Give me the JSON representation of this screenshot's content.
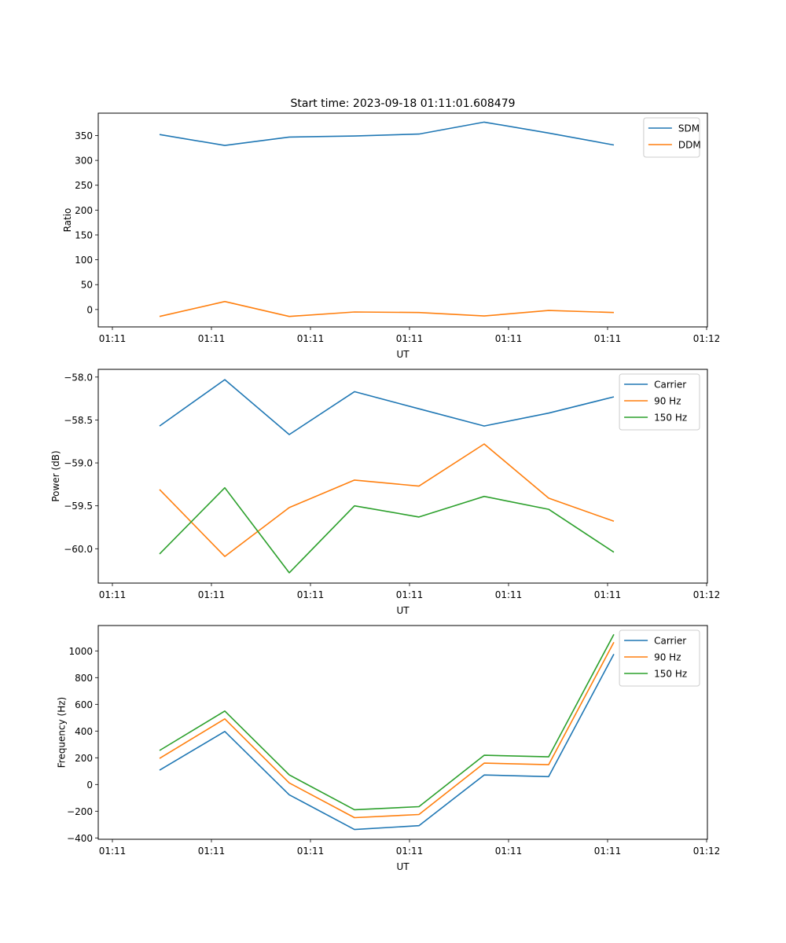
{
  "chart_data": [
    {
      "type": "line",
      "title": "Start time: 2023-09-18 01:11:01.608479",
      "xlabel": "UT",
      "ylabel": "Ratio",
      "xtick_labels": [
        "01:11",
        "01:11",
        "01:11",
        "01:11",
        "01:11",
        "01:11",
        "01:12"
      ],
      "ytick_labels": [
        "0",
        "50",
        "100",
        "150",
        "200",
        "250",
        "300",
        "350"
      ],
      "yticks": [
        0,
        50,
        100,
        150,
        200,
        250,
        300,
        350
      ],
      "ylim": [
        -35,
        395
      ],
      "x": [
        1,
        2,
        3,
        4,
        5,
        6,
        7,
        8
      ],
      "xlim": [
        -1.2,
        8.2
      ],
      "xticks": [
        -1,
        0.53,
        2.06,
        3.59,
        5.12,
        6.65,
        8.18
      ],
      "legend": "top-right",
      "grid": false,
      "series": [
        {
          "name": "SDM",
          "color": "#1f77b4",
          "values": [
            352,
            330,
            347,
            349,
            353,
            377,
            355,
            331
          ]
        },
        {
          "name": "DDM",
          "color": "#ff7f0e",
          "values": [
            -14,
            16,
            -14,
            -5,
            -6,
            -13,
            -2,
            -6
          ]
        }
      ]
    },
    {
      "type": "line",
      "title": "",
      "xlabel": "UT",
      "ylabel": "Power (dB)",
      "xtick_labels": [
        "01:11",
        "01:11",
        "01:11",
        "01:11",
        "01:11",
        "01:11",
        "01:12"
      ],
      "ytick_labels": [
        "−60.0",
        "−59.5",
        "−59.0",
        "−58.5",
        "−58.0"
      ],
      "yticks": [
        -60.0,
        -59.5,
        -59.0,
        -58.5,
        -58.0
      ],
      "ylim": [
        -60.4,
        -57.91
      ],
      "x": [
        1,
        2,
        3,
        4,
        5,
        6,
        7,
        8
      ],
      "xlim": [
        -1.2,
        8.2
      ],
      "xticks": [
        -1,
        0.53,
        2.06,
        3.59,
        5.12,
        6.65,
        8.18
      ],
      "legend": "top-right",
      "grid": false,
      "series": [
        {
          "name": "Carrier",
          "color": "#1f77b4",
          "values": [
            -58.57,
            -58.03,
            -58.67,
            -58.17,
            -58.37,
            -58.57,
            -58.42,
            -58.23
          ]
        },
        {
          "name": "90 Hz",
          "color": "#ff7f0e",
          "values": [
            -59.31,
            -60.09,
            -59.52,
            -59.2,
            -59.27,
            -58.78,
            -59.41,
            -59.68
          ]
        },
        {
          "name": "150 Hz",
          "color": "#2ca02c",
          "values": [
            -60.06,
            -59.29,
            -60.28,
            -59.5,
            -59.63,
            -59.39,
            -59.54,
            -60.04
          ]
        }
      ]
    },
    {
      "type": "line",
      "title": "",
      "xlabel": "UT",
      "ylabel": "Frequency (Hz)",
      "xtick_labels": [
        "01:11",
        "01:11",
        "01:11",
        "01:11",
        "01:11",
        "01:11",
        "01:12"
      ],
      "ytick_labels": [
        "−400",
        "−200",
        "0",
        "200",
        "400",
        "600",
        "800",
        "1000"
      ],
      "yticks": [
        -400,
        -200,
        0,
        200,
        400,
        600,
        800,
        1000
      ],
      "ylim": [
        -410,
        1190
      ],
      "x": [
        1,
        2,
        3,
        4,
        5,
        6,
        7,
        8
      ],
      "xlim": [
        -1.2,
        8.2
      ],
      "xticks": [
        -1,
        0.53,
        2.06,
        3.59,
        5.12,
        6.65,
        8.18
      ],
      "legend": "top-right",
      "grid": false,
      "series": [
        {
          "name": "Carrier",
          "color": "#1f77b4",
          "values": [
            107,
            397,
            -77,
            -337,
            -308,
            71,
            59,
            976
          ]
        },
        {
          "name": "90 Hz",
          "color": "#ff7f0e",
          "values": [
            195,
            491,
            12,
            -248,
            -225,
            160,
            148,
            1065
          ]
        },
        {
          "name": "150 Hz",
          "color": "#2ca02c",
          "values": [
            255,
            550,
            72,
            -189,
            -166,
            219,
            207,
            1124
          ]
        }
      ]
    }
  ]
}
